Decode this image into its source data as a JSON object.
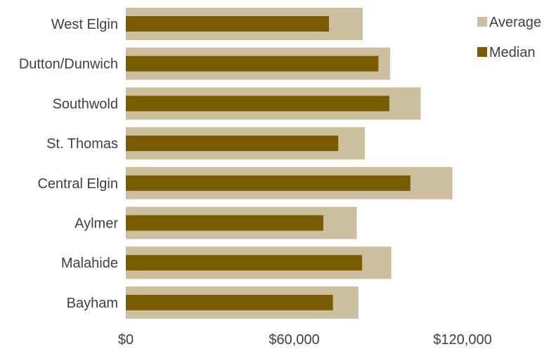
{
  "chart_data": {
    "type": "bar",
    "orientation": "horizontal",
    "categories": [
      "West Elgin",
      "Dutton/Dunwich",
      "Southwold",
      "St. Thomas",
      "Central Elgin",
      "Aylmer",
      "Malahide",
      "Bayham"
    ],
    "series": [
      {
        "name": "Average",
        "color": "#cbbf9d",
        "values": [
          84400,
          94200,
          105100,
          85200,
          116400,
          82300,
          94600,
          82900
        ]
      },
      {
        "name": "Median",
        "color": "#7a5c00",
        "values": [
          72400,
          90000,
          93900,
          75700,
          101400,
          70400,
          84200,
          73800
        ]
      }
    ],
    "xlim": [
      0,
      140000
    ],
    "xticks": [
      "$0",
      "$60,000",
      "$120,000"
    ],
    "xtick_values": [
      0,
      60000,
      120000
    ],
    "legend_position": "top-right",
    "grid": false,
    "title": "",
    "xlabel": "",
    "ylabel": ""
  }
}
